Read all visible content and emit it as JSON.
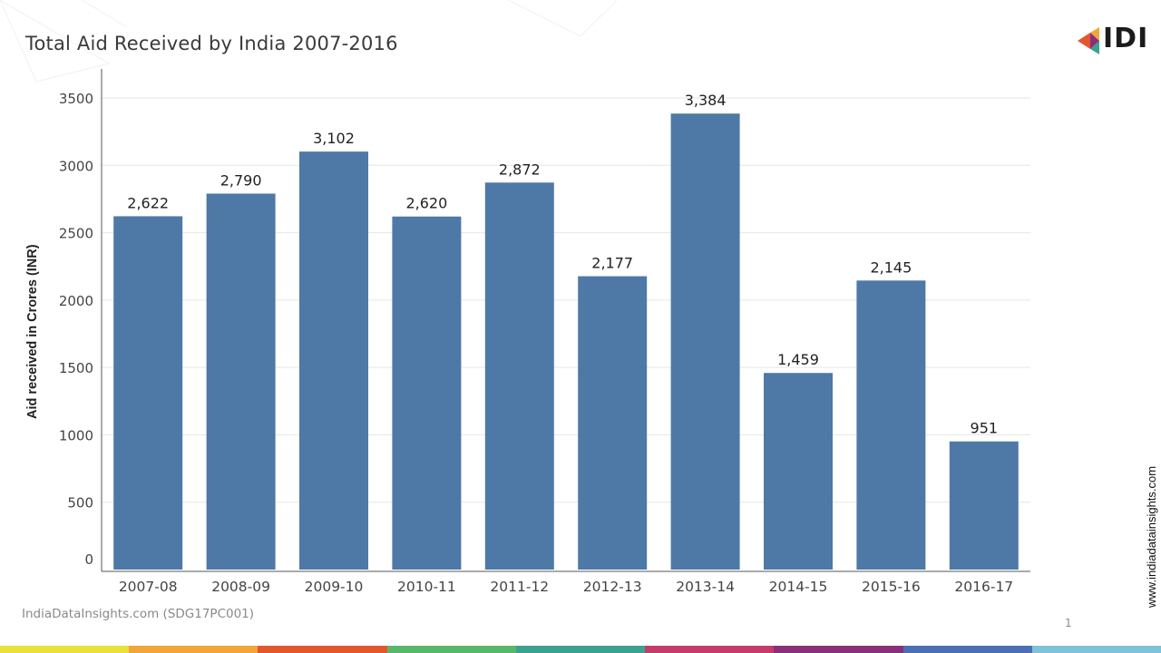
{
  "title": "Total Aid Received by India 2007-2016",
  "logo_text": "IDI",
  "source_note": "IndiaDataInsights.com (SDG17PC001)",
  "page_number": "1",
  "side_url": "www.indiadatainsights.com",
  "colors": {
    "bar": "#4e79a7",
    "grid": "#e6e6e6",
    "axis": "#555555",
    "tick_text": "#444444",
    "bottom_stripe": [
      "#e7e13a",
      "#f0a63a",
      "#e3572e",
      "#58b86a",
      "#3aa28e",
      "#c63b6b",
      "#8a2f7a",
      "#4a6fb4",
      "#7fc3d6"
    ]
  },
  "chart_data": {
    "type": "bar",
    "title": "Total Aid Received by India 2007-2016",
    "xlabel": "",
    "ylabel": "Aid received in Crores (INR)",
    "categories": [
      "2007-08",
      "2008-09",
      "2009-10",
      "2010-11",
      "2011-12",
      "2012-13",
      "2013-14",
      "2014-15",
      "2015-16",
      "2016-17"
    ],
    "values": [
      2622,
      2790,
      3102,
      2620,
      2872,
      2177,
      3384,
      1459,
      2145,
      951
    ],
    "data_labels": [
      "2,622",
      "2,790",
      "3,102",
      "2,620",
      "2,872",
      "2,177",
      "3,384",
      "1,459",
      "2,145",
      "951"
    ],
    "ylim": [
      0,
      3500
    ],
    "yticks": [
      0,
      500,
      1000,
      1500,
      2000,
      2500,
      3000,
      3500
    ],
    "grid": true,
    "legend": "none"
  }
}
